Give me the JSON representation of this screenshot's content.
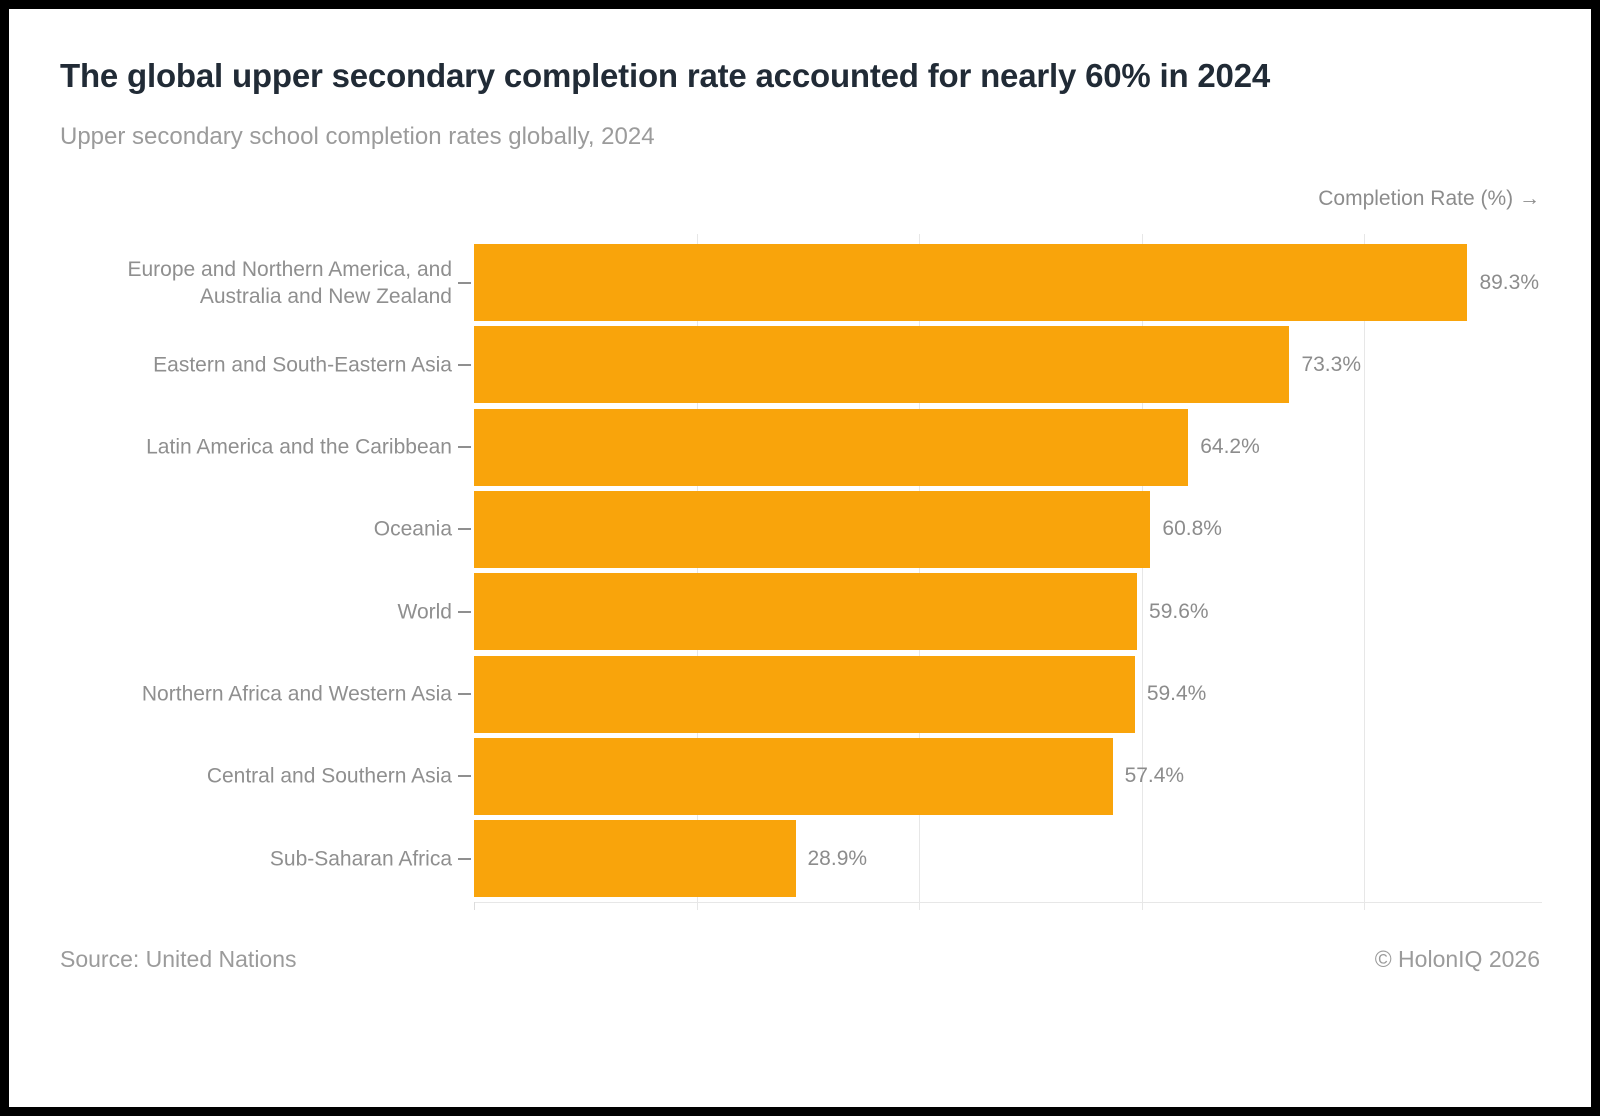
{
  "header": {
    "title": "The global upper secondary completion rate accounted for nearly 60% in 2024",
    "subtitle": "Upper secondary school completion rates globally, 2024"
  },
  "footer": {
    "source": "Source: United Nations",
    "copyright": "© HolonIQ 2026"
  },
  "colors": {
    "bar": "#F9A40B",
    "title_text": "#212B36",
    "muted_text": "#9B9B9B",
    "label_text": "#8F8F8F",
    "value_text": "#8C8C8C",
    "gridline": "#E7E7E7",
    "frame": "#000000",
    "background": "#FFFFFF"
  },
  "chart_data": {
    "type": "bar",
    "orientation": "horizontal",
    "title": "The global upper secondary completion rate accounted for nearly 60% in 2024",
    "subtitle": "Upper secondary school completion rates globally, 2024",
    "xlabel": "Completion Rate (%) →",
    "ylabel": "",
    "categories": [
      "Europe and Northern America, and\nAustralia and New Zealand",
      "Eastern and South-Eastern Asia",
      "Latin America and the Caribbean",
      "Oceania",
      "World",
      "Northern Africa and Western Asia",
      "Central and Southern Asia",
      "Sub-Saharan Africa"
    ],
    "values": [
      89.3,
      73.3,
      64.2,
      60.8,
      59.6,
      59.4,
      57.4,
      28.9
    ],
    "value_labels": [
      "89.3%",
      "73.3%",
      "64.2%",
      "60.8%",
      "59.6%",
      "59.4%",
      "57.4%",
      "28.9%"
    ],
    "xlim": [
      0,
      96
    ],
    "gridlines": [
      20,
      40,
      60,
      80
    ],
    "grid": "vertical-only",
    "legend": "none",
    "bar_color": "#F9A40B",
    "source": "United Nations",
    "attribution": "© HolonIQ 2026",
    "year": 2024
  }
}
